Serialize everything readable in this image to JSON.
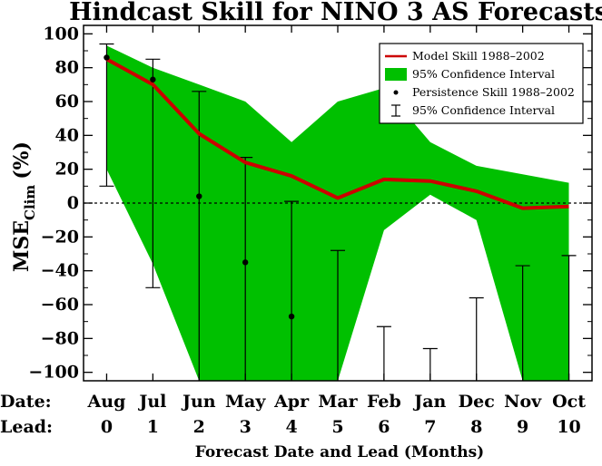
{
  "chart_data": {
    "type": "line",
    "title": "Hindcast Skill for NINO 3 AS Forecasts",
    "xlabel": "Forecast Date and Lead (Months)",
    "ylabel": {
      "main": "MSE",
      "sub": "Clim",
      "unit": "(%)"
    },
    "row_labels": {
      "date": "Date:",
      "lead": "Lead:"
    },
    "dates": [
      "Aug",
      "Jul",
      "Jun",
      "May",
      "Apr",
      "Mar",
      "Feb",
      "Jan",
      "Dec",
      "Nov",
      "Oct"
    ],
    "leads": [
      0,
      1,
      2,
      3,
      4,
      5,
      6,
      7,
      8,
      9,
      10
    ],
    "ylim": [
      -105,
      105
    ],
    "yticks": [
      100,
      80,
      60,
      40,
      20,
      0,
      -20,
      -40,
      -60,
      -80,
      -100
    ],
    "series": [
      {
        "name": "Model Skill 1988–2002",
        "kind": "line",
        "color": "#cc0000",
        "values": [
          85,
          70,
          41,
          24,
          16,
          3,
          14,
          13,
          7,
          -3,
          -2
        ]
      },
      {
        "name": "95% Confidence Interval",
        "kind": "band",
        "color": "#00c000",
        "upper": [
          93,
          80,
          70,
          60,
          36,
          60,
          68,
          36,
          22,
          17,
          12
        ],
        "lower": [
          20,
          -36,
          -105,
          -105,
          -105,
          -105,
          -16,
          5,
          -10,
          -105,
          -105
        ]
      },
      {
        "name": "Persistence Skill 1988–2002",
        "kind": "points",
        "color": "#000000",
        "values": [
          86,
          73,
          4,
          -35,
          -67,
          null,
          null,
          null,
          null,
          null,
          null
        ]
      },
      {
        "name": "95% Confidence Interval",
        "kind": "errorbar",
        "color": "#000000",
        "upper": [
          94,
          85,
          66,
          27,
          1,
          -28,
          -73,
          -86,
          -56,
          -37,
          -31
        ],
        "lower": [
          10,
          -50,
          -105,
          -105,
          -105,
          -105,
          -105,
          -105,
          -105,
          -105,
          -105
        ]
      }
    ],
    "zero_line": true,
    "legend_position": "top-right"
  }
}
